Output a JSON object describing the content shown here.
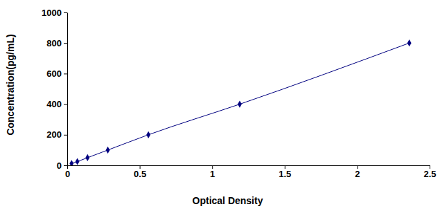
{
  "chart_data": {
    "type": "line",
    "x_label": "Optical Density",
    "y_label": "Concentration(pg/mL)",
    "x": [
      0.03,
      0.07,
      0.14,
      0.28,
      0.56,
      1.19,
      2.36
    ],
    "values": [
      12.5,
      25,
      50,
      100,
      200,
      400,
      800
    ],
    "color": "#000080",
    "marker": "diamond",
    "line_style": "solid",
    "xlim": [
      0,
      2.5
    ],
    "xticks": [
      0,
      0.5,
      1,
      1.5,
      2,
      2.5
    ],
    "ylim": [
      0,
      1000
    ],
    "yticks": [
      0,
      200,
      400,
      600,
      800,
      1000
    ],
    "grid": false
  }
}
